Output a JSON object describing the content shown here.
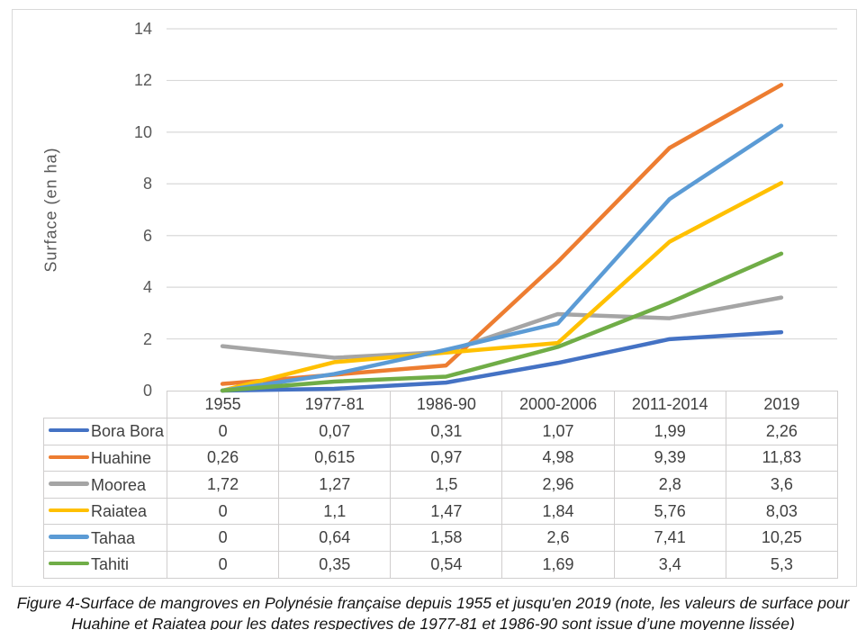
{
  "chart_data": {
    "type": "line",
    "title": "",
    "ylabel": "Surface (en ha)",
    "xlabel": "",
    "ylim": [
      0,
      14
    ],
    "yticks": [
      0,
      2,
      4,
      6,
      8,
      10,
      12,
      14
    ],
    "grid": true,
    "legend_position": "table-left-column",
    "categories": [
      "1955",
      "1977-81",
      "1986-90",
      "2000-2006",
      "2011-2014",
      "2019"
    ],
    "series": [
      {
        "name": "Bora Bora",
        "color": "#4472C4",
        "values": [
          0,
          0.07,
          0.31,
          1.07,
          1.99,
          2.26
        ],
        "display": [
          "0",
          "0,07",
          "0,31",
          "1,07",
          "1,99",
          "2,26"
        ]
      },
      {
        "name": "Huahine",
        "color": "#ED7D31",
        "values": [
          0.26,
          0.615,
          0.97,
          4.98,
          9.39,
          11.83
        ],
        "display": [
          "0,26",
          "0,615",
          "0,97",
          "4,98",
          "9,39",
          "11,83"
        ]
      },
      {
        "name": "Moorea",
        "color": "#A5A5A5",
        "values": [
          1.72,
          1.27,
          1.5,
          2.96,
          2.8,
          3.6
        ],
        "display": [
          "1,72",
          "1,27",
          "1,5",
          "2,96",
          "2,8",
          "3,6"
        ]
      },
      {
        "name": "Raiatea",
        "color": "#FFC000",
        "values": [
          0,
          1.1,
          1.47,
          1.84,
          5.76,
          8.03
        ],
        "display": [
          "0",
          "1,1",
          "1,47",
          "1,84",
          "5,76",
          "8,03"
        ]
      },
      {
        "name": "Tahaa",
        "color": "#5B9BD5",
        "values": [
          0,
          0.64,
          1.58,
          2.6,
          7.41,
          10.25
        ],
        "display": [
          "0",
          "0,64",
          "1,58",
          "2,6",
          "7,41",
          "10,25"
        ]
      },
      {
        "name": "Tahiti",
        "color": "#70AD47",
        "values": [
          0,
          0.35,
          0.54,
          1.69,
          3.4,
          5.3
        ],
        "display": [
          "0",
          "0,35",
          "0,54",
          "1,69",
          "3,4",
          "5,3"
        ]
      }
    ]
  },
  "caption": {
    "line1": "Figure 4-Surface de mangroves en Polynésie française depuis 1955 et jusqu'en 2019 (note, les valeurs de surface pour",
    "line2": "Huahine et Raiatea pour les dates respectives de 1977-81 et 1986-90 sont issue d’une moyenne lissée)"
  },
  "colors": {
    "gridline": "#D9D9D9",
    "frame_border": "#D9D9D9",
    "table_border": "#D0CECE",
    "axis_text": "#595959",
    "table_text": "#404040",
    "caption_text": "#141414"
  }
}
